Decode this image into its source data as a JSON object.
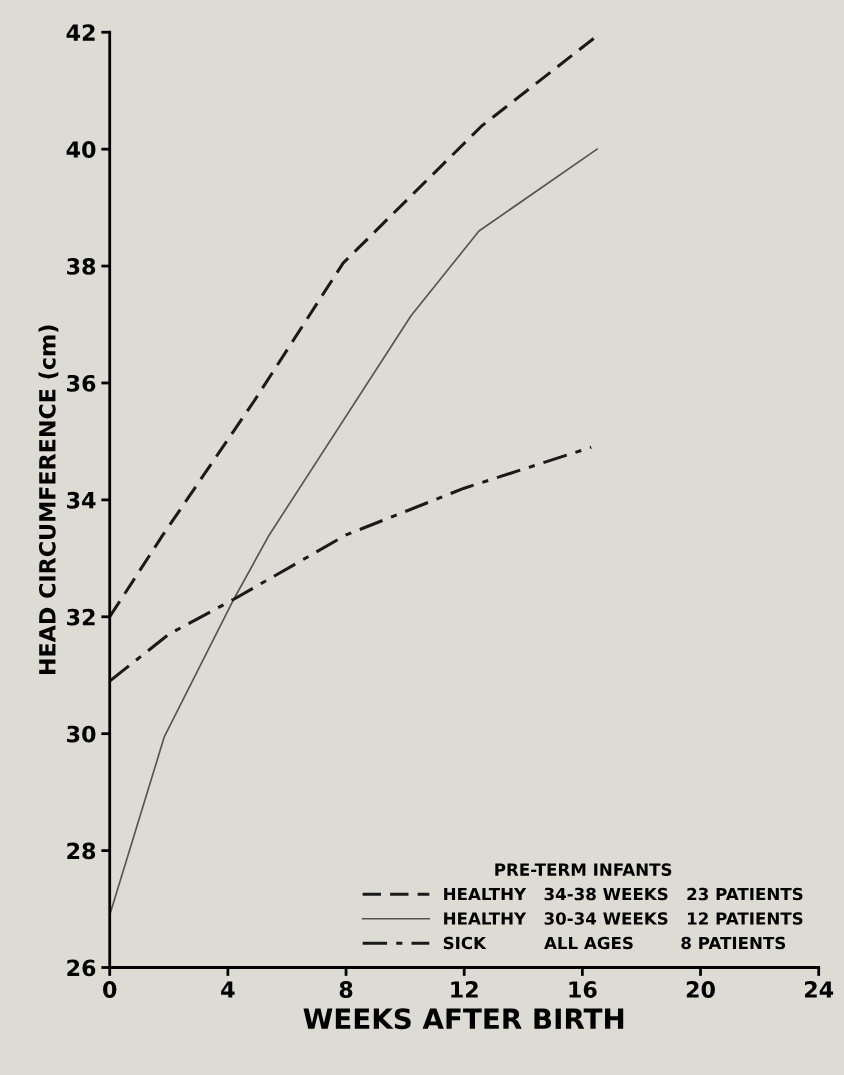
{
  "chart_data": {
    "type": "line",
    "xlabel": "WEEKS AFTER BIRTH",
    "ylabel": "HEAD CIRCUMFERENCE (cm)",
    "legend_title": "PRE-TERM INFANTS",
    "xlim": [
      0,
      24
    ],
    "xticks": [
      0,
      4,
      8,
      12,
      16,
      20,
      24
    ],
    "ylim": [
      26,
      42
    ],
    "yticks": [
      26,
      28,
      30,
      32,
      34,
      36,
      38,
      40,
      42
    ],
    "grid": false,
    "legend": "bottom right",
    "marker": "none",
    "series": [
      {
        "name": "HEALTHY   34-38 WEEKS   23 PATIENTS",
        "color": "#1a1a1a",
        "line_style": "dashed",
        "x": [
          0,
          1.8,
          4.9,
          7.9,
          12.6,
          16.4
        ],
        "values": [
          32.0,
          33.4,
          35.7,
          38.05,
          40.4,
          41.9
        ]
      },
      {
        "name": "HEALTHY   30-34 WEEKS   12 PATIENTS",
        "color": "#555555",
        "line_style": "solid",
        "x": [
          0,
          1.85,
          4.2,
          5.4,
          10.2,
          12.5,
          16.5
        ],
        "values": [
          26.9,
          29.95,
          32.3,
          33.4,
          37.15,
          38.6,
          40.0
        ]
      },
      {
        "name": "SICK          ALL AGES        8 PATIENTS",
        "color": "#1a1a1a",
        "line_style": "dashdot",
        "x": [
          0,
          2,
          4.2,
          8,
          12,
          16.3
        ],
        "values": [
          30.9,
          31.7,
          32.3,
          33.4,
          34.2,
          34.9
        ]
      }
    ]
  }
}
